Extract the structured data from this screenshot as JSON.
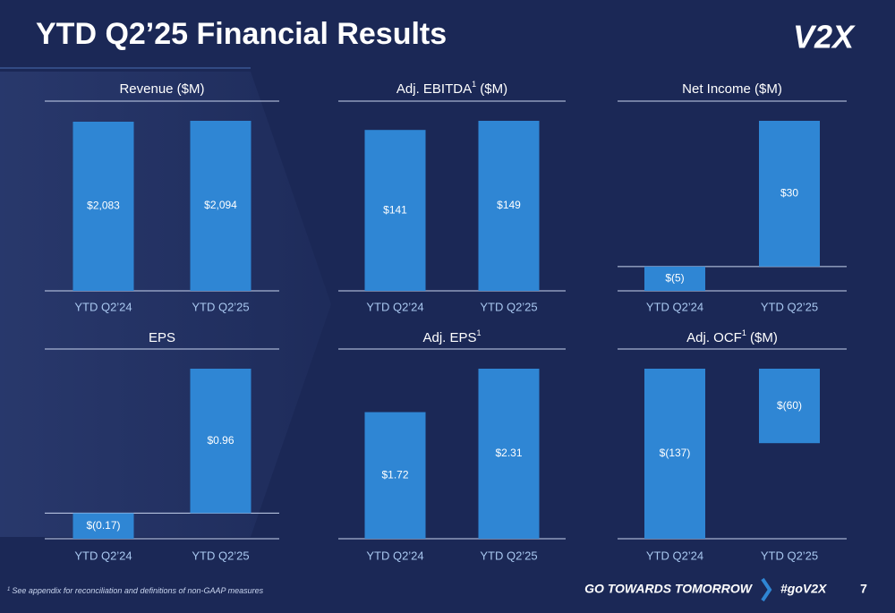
{
  "header": {
    "title": "YTD Q2’25 Financial Results",
    "logo": "V2X"
  },
  "footer": {
    "note_sup": "1",
    "note": "See appendix for reconciliation and definitions of non-GAAP measures",
    "tagline": "GO TOWARDS TOMORROW",
    "hashtag": "#goV2X",
    "page": "7"
  },
  "chart_data": [
    {
      "type": "bar",
      "title": "Revenue ($M)",
      "categories": [
        "YTD Q2’24",
        "YTD Q2’25"
      ],
      "values": [
        2083,
        2094
      ],
      "value_labels": [
        "$2,083",
        "$2,094"
      ],
      "color": "#2f86d4"
    },
    {
      "type": "bar",
      "title": "Adj. EBITDA",
      "title_sup": "1",
      "title_suffix": " ($M)",
      "categories": [
        "YTD Q2’24",
        "YTD Q2’25"
      ],
      "values": [
        141,
        149
      ],
      "value_labels": [
        "$141",
        "$149"
      ],
      "color": "#2f86d4"
    },
    {
      "type": "bar",
      "title": "Net Income ($M)",
      "categories": [
        "YTD Q2’24",
        "YTD Q2’25"
      ],
      "values": [
        -5,
        30
      ],
      "value_labels": [
        "$(5)",
        "$30"
      ],
      "color": "#2f86d4"
    },
    {
      "type": "bar",
      "title": "EPS",
      "categories": [
        "YTD Q2’24",
        "YTD Q2’25"
      ],
      "values": [
        -0.17,
        0.96
      ],
      "value_labels": [
        "$(0.17)",
        "$0.96"
      ],
      "color": "#2f86d4"
    },
    {
      "type": "bar",
      "title": "Adj. EPS",
      "title_sup": "1",
      "categories": [
        "YTD Q2’24",
        "YTD Q2’25"
      ],
      "values": [
        1.72,
        2.31
      ],
      "value_labels": [
        "$1.72",
        "$2.31"
      ],
      "color": "#2f86d4"
    },
    {
      "type": "bar",
      "title": "Adj. OCF",
      "title_sup": "1",
      "title_suffix": " ($M)",
      "categories": [
        "YTD Q2’24",
        "YTD Q2’25"
      ],
      "values": [
        -137,
        -60
      ],
      "value_labels": [
        "$(137)",
        "$(60)"
      ],
      "color": "#2f86d4"
    }
  ]
}
